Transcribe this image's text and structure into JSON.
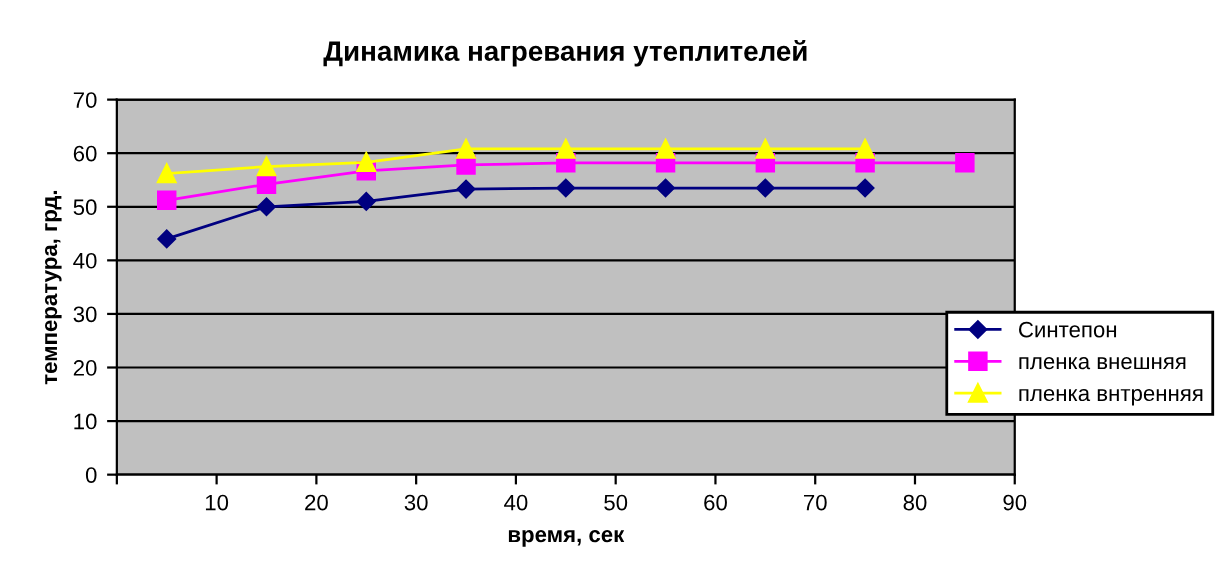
{
  "chart_data": {
    "type": "line",
    "title": "Динамика нагревания утеплителей",
    "xlabel": "время, сек",
    "ylabel": "температура, грд.",
    "xlim": [
      0,
      90
    ],
    "xticks": [
      {
        "value": 0,
        "label": null
      },
      10,
      20,
      30,
      40,
      50,
      60,
      70,
      80,
      90
    ],
    "ylim": [
      0,
      70
    ],
    "yticks": [
      0,
      10,
      20,
      30,
      40,
      50,
      60,
      70
    ],
    "grid": "y",
    "legend": "right",
    "series": [
      {
        "name": "Синтепон",
        "color": "#000080",
        "marker": "diamond",
        "x": [
          5,
          15,
          25,
          35,
          45,
          55,
          65,
          75
        ],
        "values": [
          44,
          50,
          51,
          53.3,
          53.5,
          53.5,
          53.5,
          53.5
        ]
      },
      {
        "name": "пленка внешняя",
        "color": "#ff00ff",
        "marker": "square",
        "x": [
          5,
          15,
          25,
          35,
          45,
          55,
          65,
          75,
          85
        ],
        "values": [
          51.2,
          54.2,
          56.7,
          57.8,
          58.2,
          58.2,
          58.2,
          58.2,
          58.2
        ]
      },
      {
        "name": "пленка внтренняя",
        "color": "#ffff00",
        "marker": "triangle",
        "x": [
          5,
          15,
          25,
          35,
          45,
          55,
          65,
          75
        ],
        "values": [
          56.2,
          57.5,
          58.3,
          60.8,
          60.8,
          60.8,
          60.8,
          60.8
        ]
      }
    ]
  }
}
